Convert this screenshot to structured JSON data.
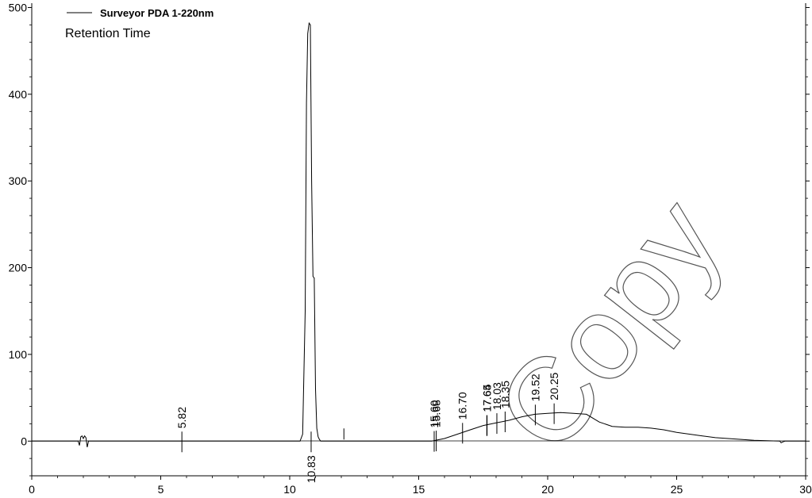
{
  "chart_data": {
    "type": "line",
    "title": "",
    "subtitle": "Retention Time",
    "xlabel": "",
    "ylabel": "",
    "xlim": [
      0,
      30
    ],
    "ylim": [
      -40,
      505
    ],
    "x_ticks": [
      0,
      5,
      10,
      15,
      20,
      25,
      30
    ],
    "y_ticks": [
      0,
      100,
      200,
      300,
      400,
      500
    ],
    "legend": {
      "position": "top-left",
      "entries": [
        "Surveyor PDA 1-220nm"
      ]
    },
    "grid": false,
    "series": [
      {
        "name": "Surveyor PDA 1-220nm",
        "x": [
          0,
          1.8,
          1.85,
          1.9,
          1.95,
          2.0,
          2.05,
          2.1,
          2.15,
          2.2,
          5.5,
          10.4,
          10.5,
          10.6,
          10.65,
          10.7,
          10.75,
          10.8,
          10.85,
          10.9,
          10.95,
          11.0,
          11.05,
          11.1,
          11.15,
          11.2,
          11.3,
          15.5,
          16.0,
          16.5,
          17.0,
          17.5,
          18.0,
          18.5,
          19.0,
          19.5,
          20.0,
          20.5,
          21.0,
          21.5,
          22.0,
          22.5,
          23.0,
          23.5,
          24.0,
          24.5,
          25.0,
          25.5,
          26.0,
          26.5,
          27.0,
          27.5,
          28.0,
          28.5,
          29.0,
          29.05,
          29.1,
          29.2,
          29.5,
          30.0
        ],
        "y": [
          0,
          0,
          -5,
          5,
          6,
          3,
          6,
          4,
          -7,
          0,
          0,
          0,
          8,
          150,
          390,
          470,
          482,
          480,
          300,
          190,
          188,
          60,
          15,
          5,
          2,
          0,
          0,
          0,
          3,
          8,
          13,
          18,
          21,
          24,
          28,
          31,
          32,
          33,
          32,
          31,
          22,
          17,
          16,
          16,
          15,
          13,
          10,
          8,
          6,
          4,
          3,
          2,
          1,
          0.5,
          0,
          -2,
          -1,
          0,
          0,
          0
        ]
      }
    ],
    "peaks": [
      {
        "label": "5.82",
        "x": 5.82
      },
      {
        "label": "10.83",
        "x": 10.83
      },
      {
        "label": "15.60",
        "x": 15.6
      },
      {
        "label": "15.68",
        "x": 15.68
      },
      {
        "label": "16.70",
        "x": 16.7
      },
      {
        "label": "17.64",
        "x": 17.64
      },
      {
        "label": "17.65",
        "x": 17.65
      },
      {
        "label": "18.03",
        "x": 18.03
      },
      {
        "label": "18.35",
        "x": 18.35
      },
      {
        "label": "19.52",
        "x": 19.52
      },
      {
        "label": "20.25",
        "x": 20.25
      }
    ],
    "watermark": "Copy"
  }
}
